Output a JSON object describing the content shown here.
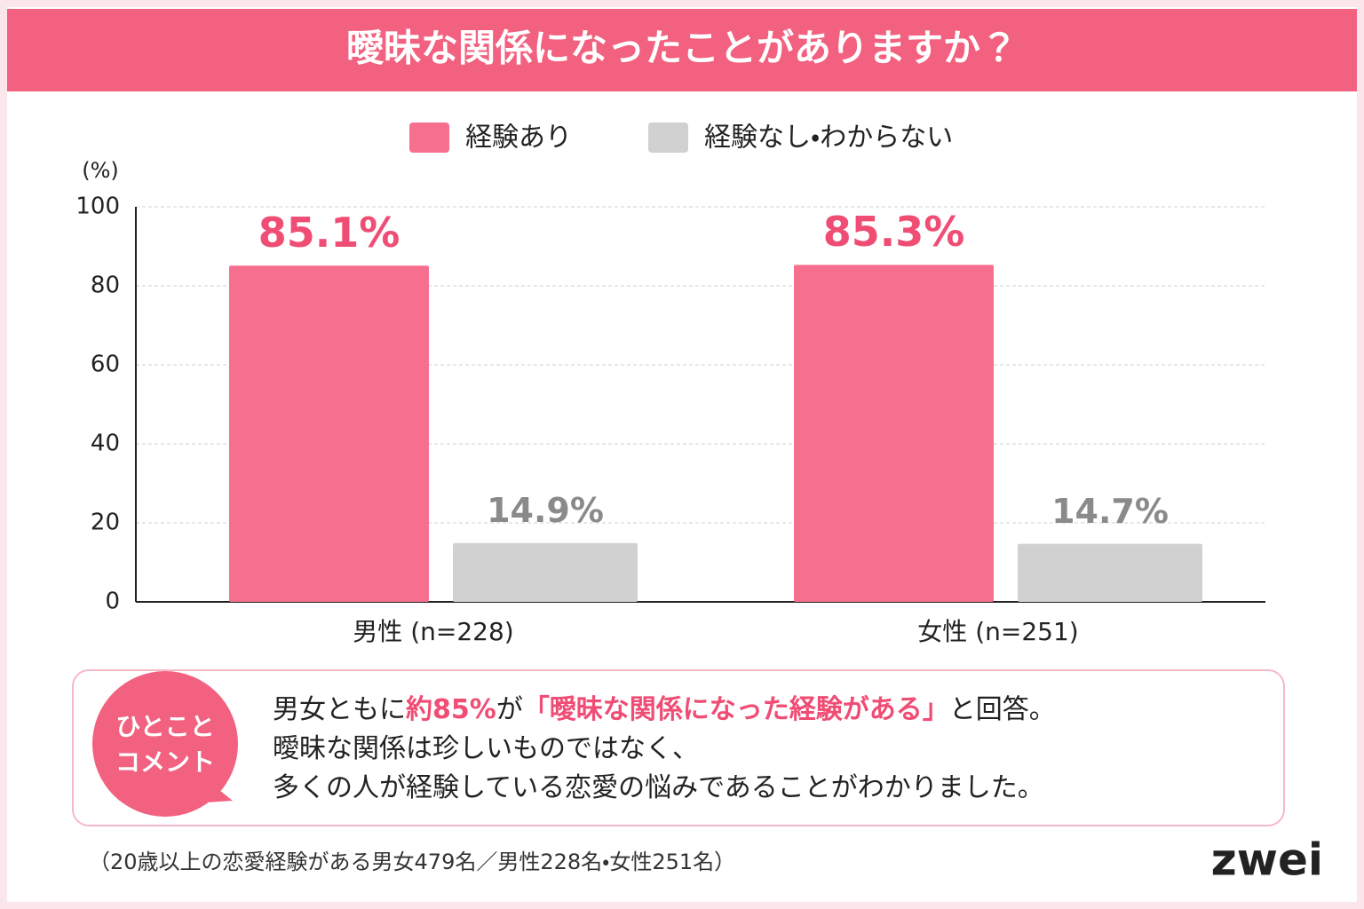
{
  "chart_data": {
    "type": "bar",
    "title": "曖昧な関係になったことがありますか？",
    "y_label": "(%)",
    "categories": [
      "男性 (n=228)",
      "女性 (n=251)"
    ],
    "series": [
      {
        "name": "経験あり",
        "color": "#f76f8f",
        "label_color": "#ef4d74",
        "values": [
          85.1,
          85.3
        ],
        "value_labels": [
          "85.1%",
          "85.3%"
        ]
      },
      {
        "name": "経験なし・わからない",
        "color": "#d1d1d1",
        "label_color": "#8a8a8a",
        "values": [
          14.9,
          14.7
        ],
        "value_labels": [
          "14.9%",
          "14.7%"
        ]
      }
    ],
    "ylim": [
      0,
      100
    ],
    "yticks": [
      0,
      20,
      40,
      60,
      80,
      100
    ],
    "grid": true
  },
  "comment": {
    "badge": [
      "ひとこと",
      "コメント"
    ],
    "lines": [
      [
        {
          "text": "男女ともに"
        },
        {
          "text": "約85%",
          "emphasis": true
        },
        {
          "text": "が"
        },
        {
          "text": "「曖昧な関係になった経験がある」",
          "emphasis": true
        },
        {
          "text": "と回答。"
        }
      ],
      [
        {
          "text": "曖昧な関係は珍しいものではなく、"
        }
      ],
      [
        {
          "text": "多くの人が経験している恋愛の悩みであることがわかりました。"
        }
      ]
    ]
  },
  "footnote": "（20歳以上の恋愛経験がある男女479名／男性228名・女性251名）",
  "logo": "zwei"
}
